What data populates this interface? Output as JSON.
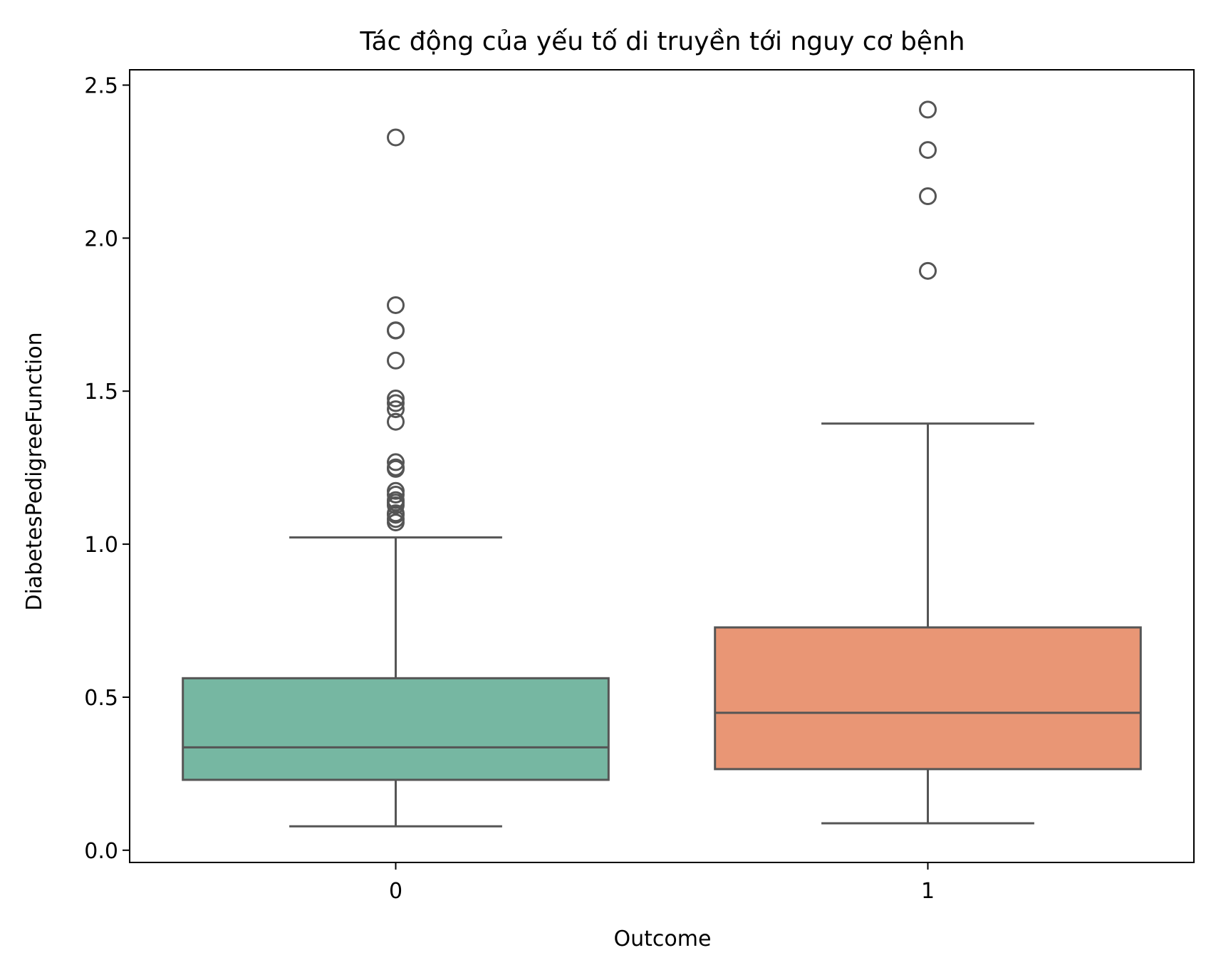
{
  "chart_data": {
    "type": "box",
    "title": "Tác động của yếu tố di truyền tới nguy cơ bệnh",
    "xlabel": "Outcome",
    "ylabel": "DiabetesPedigreeFunction",
    "categories": [
      "0",
      "1"
    ],
    "ylim": [
      -0.04,
      2.55
    ],
    "yticks": [
      0.0,
      0.5,
      1.0,
      1.5,
      2.0,
      2.5
    ],
    "ytick_labels": [
      "0.0",
      "0.5",
      "1.0",
      "1.5",
      "2.0",
      "2.5"
    ],
    "grid": false,
    "legend": "none",
    "boxes": [
      {
        "category": "0",
        "color": "#76B7A2",
        "whisker_low": 0.078,
        "q1": 0.23,
        "median": 0.336,
        "q3": 0.562,
        "whisker_high": 1.022,
        "outliers": [
          1.071,
          1.082,
          1.096,
          1.101,
          1.127,
          1.136,
          1.144,
          1.162,
          1.174,
          1.246,
          1.251,
          1.268,
          1.4,
          1.441,
          1.461,
          1.476,
          1.6,
          1.698,
          1.699,
          1.781,
          2.329
        ]
      },
      {
        "category": "1",
        "color": "#E99675",
        "whisker_low": 0.088,
        "q1": 0.265,
        "median": 0.449,
        "q3": 0.728,
        "whisker_high": 1.394,
        "outliers": [
          1.893,
          2.137,
          2.288,
          2.42
        ]
      }
    ]
  }
}
